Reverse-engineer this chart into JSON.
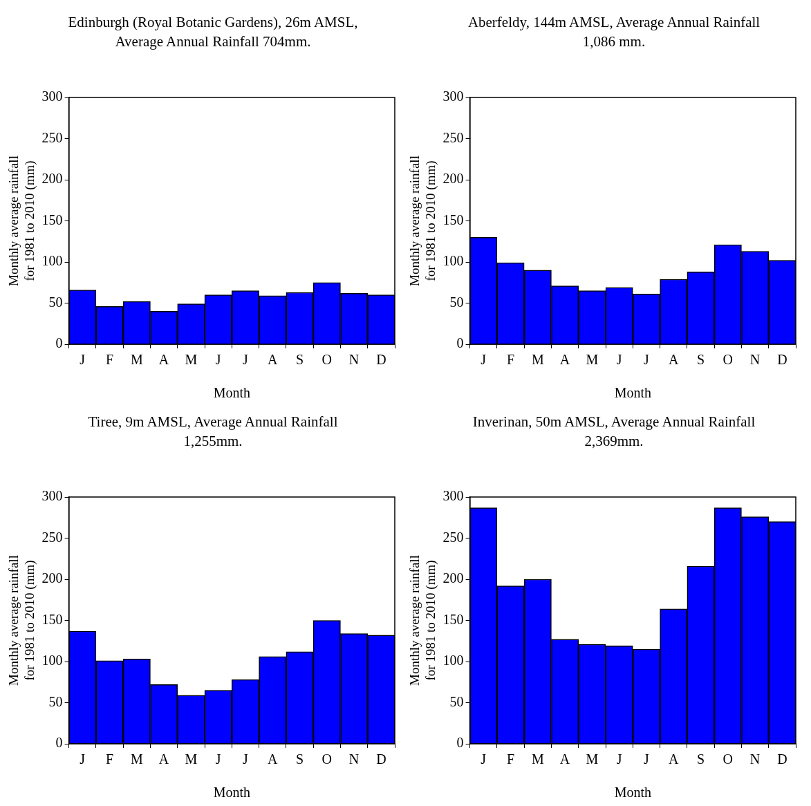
{
  "chart_data": [
    {
      "type": "bar",
      "title": "Edinburgh (Royal Botanic Gardens), 26m AMSL, Average Annual Rainfall 704mm.",
      "xlabel": "Month",
      "ylabel": "Monthly average rainfall\nfor 1981 to 2010 (mm)",
      "categories": [
        "J",
        "F",
        "M",
        "A",
        "M",
        "J",
        "J",
        "A",
        "S",
        "O",
        "N",
        "D"
      ],
      "values": [
        66,
        46,
        52,
        40,
        49,
        60,
        65,
        59,
        63,
        75,
        62,
        60
      ],
      "color": "#0000ff",
      "ylim": [
        0,
        300
      ],
      "yticks": [
        0,
        50,
        100,
        150,
        200,
        250,
        300
      ],
      "grid": false
    },
    {
      "type": "bar",
      "title": "Aberfeldy, 144m AMSL, Average Annual Rainfall 1,086 mm.",
      "xlabel": "Month",
      "ylabel": "Monthly average rainfall\nfor 1981 to 2010 (mm)",
      "categories": [
        "J",
        "F",
        "M",
        "A",
        "M",
        "J",
        "J",
        "A",
        "S",
        "O",
        "N",
        "D"
      ],
      "values": [
        130,
        99,
        90,
        71,
        65,
        69,
        61,
        79,
        88,
        121,
        113,
        102
      ],
      "color": "#0000ff",
      "ylim": [
        0,
        300
      ],
      "yticks": [
        0,
        50,
        100,
        150,
        200,
        250,
        300
      ],
      "grid": false
    },
    {
      "type": "bar",
      "title": "Tiree, 9m AMSL, Average Annual Rainfall 1,255mm.",
      "xlabel": "Month",
      "ylabel": "Monthly average rainfall\nfor 1981 to 2010 (mm)",
      "categories": [
        "J",
        "F",
        "M",
        "A",
        "M",
        "J",
        "J",
        "A",
        "S",
        "O",
        "N",
        "D"
      ],
      "values": [
        137,
        101,
        103,
        72,
        59,
        65,
        78,
        106,
        112,
        150,
        134,
        132
      ],
      "color": "#0000ff",
      "ylim": [
        0,
        300
      ],
      "yticks": [
        0,
        50,
        100,
        150,
        200,
        250,
        300
      ],
      "grid": false
    },
    {
      "type": "bar",
      "title": "Inverinan, 50m AMSL, Average Annual Rainfall 2,369mm.",
      "xlabel": "Month",
      "ylabel": "Monthly average rainfall\nfor 1981 to 2010 (mm)",
      "categories": [
        "J",
        "F",
        "M",
        "A",
        "M",
        "J",
        "J",
        "A",
        "S",
        "O",
        "N",
        "D"
      ],
      "values": [
        287,
        192,
        200,
        127,
        121,
        119,
        115,
        164,
        216,
        287,
        276,
        270
      ],
      "color": "#0000ff",
      "ylim": [
        0,
        300
      ],
      "yticks": [
        0,
        50,
        100,
        150,
        200,
        250,
        300
      ],
      "grid": false
    }
  ]
}
